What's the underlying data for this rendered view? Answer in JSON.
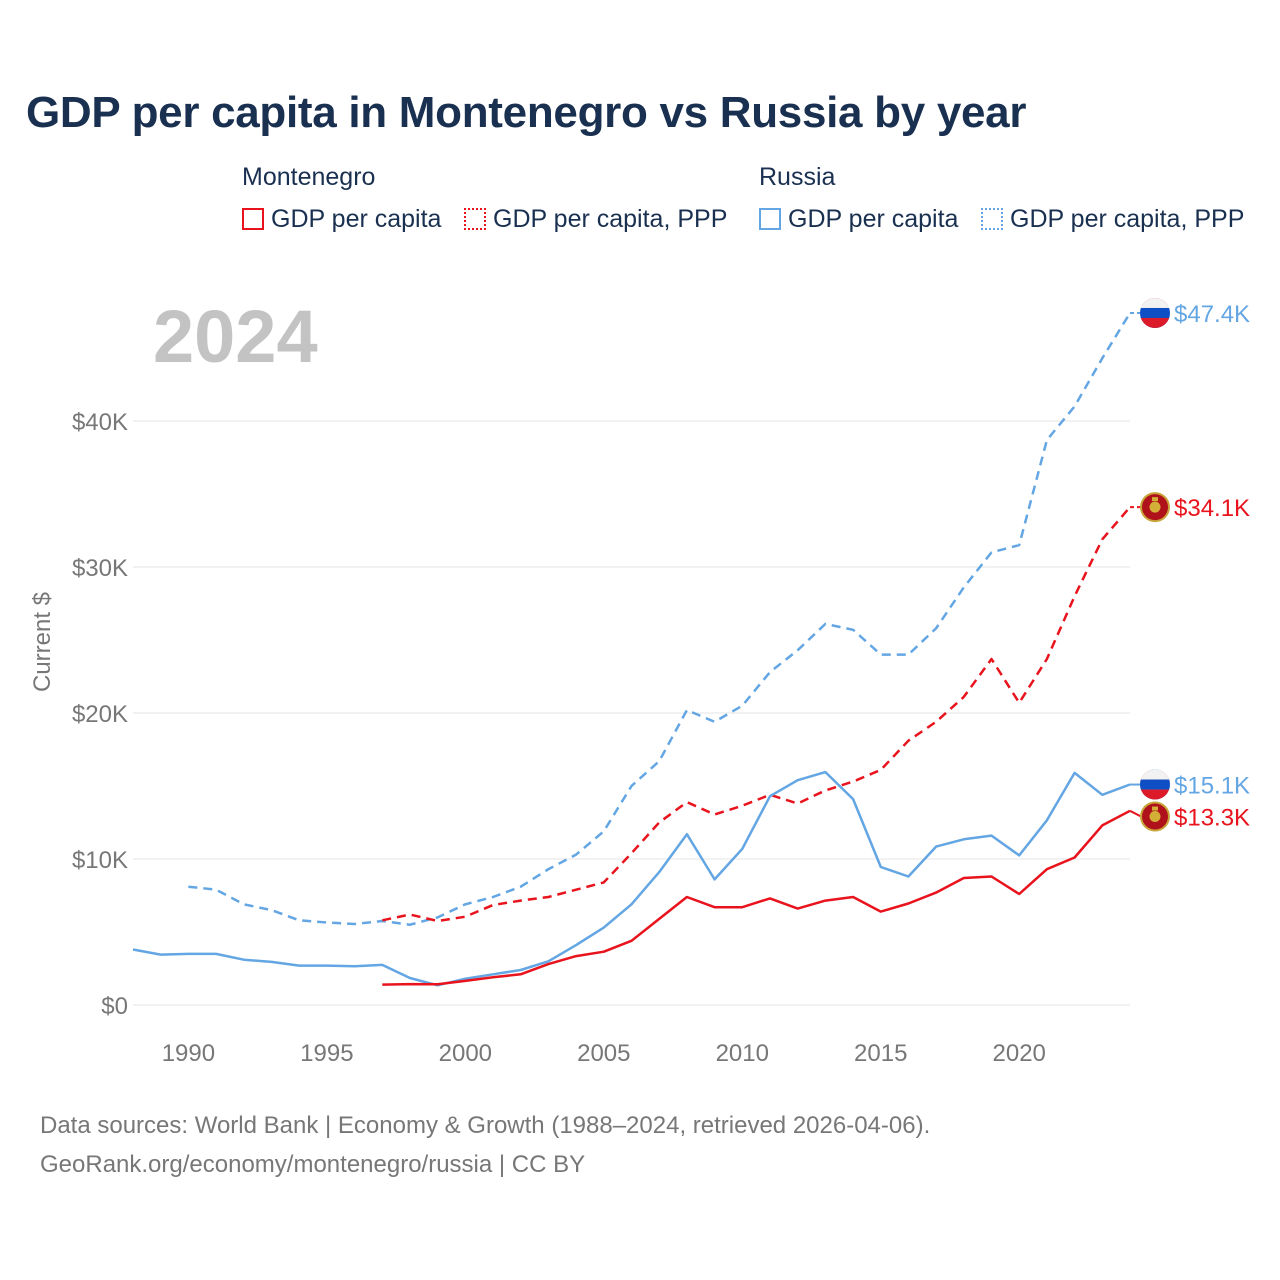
{
  "title": "GDP per capita in Montenegro vs Russia by year",
  "legend": {
    "groups": [
      {
        "country": "Montenegro",
        "color": "#e8131c",
        "items": [
          {
            "label": "GDP per capita",
            "style": "solid"
          },
          {
            "label": "GDP per capita, PPP",
            "style": "dotted"
          }
        ]
      },
      {
        "country": "Russia",
        "color": "#63a6e3",
        "items": [
          {
            "label": "GDP per capita",
            "style": "solid"
          },
          {
            "label": "GDP per capita, PPP",
            "style": "dotted"
          }
        ]
      }
    ]
  },
  "year_label": "2024",
  "chart_data": {
    "type": "line",
    "title": "GDP per capita in Montenegro vs Russia by year",
    "xlabel": "",
    "ylabel": "Current $",
    "xlim": [
      1988,
      2024
    ],
    "ylim": [
      0,
      50000
    ],
    "x_ticks": [
      1990,
      1995,
      2000,
      2005,
      2010,
      2015,
      2020
    ],
    "y_ticks": [
      0,
      10000,
      20000,
      30000,
      40000
    ],
    "y_tick_labels": [
      "$0",
      "$10K",
      "$20K",
      "$30K",
      "$40K"
    ],
    "series": [
      {
        "name": "Russia GDP per capita, PPP",
        "country": "Russia",
        "color": "#63a6e3",
        "dash": true,
        "end_label": "$47.4K",
        "x": [
          1990,
          1991,
          1992,
          1993,
          1994,
          1995,
          1996,
          1997,
          1998,
          1999,
          2000,
          2001,
          2002,
          2003,
          2004,
          2005,
          2006,
          2007,
          2008,
          2009,
          2010,
          2011,
          2012,
          2013,
          2014,
          2015,
          2016,
          2017,
          2018,
          2019,
          2020,
          2021,
          2022,
          2023,
          2024
        ],
        "values": [
          8100,
          7900,
          6900,
          6500,
          5800,
          5650,
          5550,
          5750,
          5500,
          6000,
          6900,
          7400,
          8100,
          9300,
          10300,
          11900,
          15000,
          16700,
          20200,
          19400,
          20500,
          22800,
          24300,
          26100,
          25700,
          24000,
          24000,
          25800,
          28600,
          31000,
          31500,
          38700,
          41000,
          44300,
          47400
        ]
      },
      {
        "name": "Montenegro GDP per capita, PPP",
        "country": "Montenegro",
        "color": "#e8131c",
        "dash": true,
        "end_label": "$34.1K",
        "x": [
          1997,
          1998,
          1999,
          2000,
          2001,
          2002,
          2003,
          2004,
          2005,
          2006,
          2007,
          2008,
          2009,
          2010,
          2011,
          2012,
          2013,
          2014,
          2015,
          2016,
          2017,
          2018,
          2019,
          2020,
          2021,
          2022,
          2023,
          2024
        ],
        "values": [
          5800,
          6200,
          5750,
          6050,
          6850,
          7150,
          7400,
          7900,
          8400,
          10400,
          12500,
          13900,
          13050,
          13650,
          14400,
          13800,
          14700,
          15300,
          16100,
          18100,
          19400,
          21100,
          23700,
          20700,
          23700,
          28000,
          31900,
          34100
        ]
      },
      {
        "name": "Russia GDP per capita",
        "country": "Russia",
        "color": "#63a6e3",
        "dash": false,
        "end_label": "$15.1K",
        "x": [
          1988,
          1989,
          1990,
          1991,
          1992,
          1993,
          1994,
          1995,
          1996,
          1997,
          1998,
          1999,
          2000,
          2001,
          2002,
          2003,
          2004,
          2005,
          2006,
          2007,
          2008,
          2009,
          2010,
          2011,
          2012,
          2013,
          2014,
          2015,
          2016,
          2017,
          2018,
          2019,
          2020,
          2021,
          2022,
          2023,
          2024
        ],
        "values": [
          3800,
          3450,
          3500,
          3500,
          3100,
          2950,
          2700,
          2700,
          2650,
          2750,
          1850,
          1350,
          1800,
          2100,
          2400,
          2990,
          4100,
          5300,
          6900,
          9100,
          11700,
          8600,
          10700,
          14300,
          15400,
          15950,
          14100,
          9450,
          8800,
          10850,
          11350,
          11600,
          10250,
          12650,
          15900,
          14400,
          15100
        ]
      },
      {
        "name": "Montenegro GDP per capita",
        "country": "Montenegro",
        "color": "#e8131c",
        "dash": false,
        "end_label": "$13.3K",
        "x": [
          1997,
          1998,
          1999,
          2000,
          2001,
          2002,
          2003,
          2004,
          2005,
          2006,
          2007,
          2008,
          2009,
          2010,
          2011,
          2012,
          2013,
          2014,
          2015,
          2016,
          2017,
          2018,
          2019,
          2020,
          2021,
          2022,
          2023,
          2024
        ],
        "values": [
          1400,
          1430,
          1420,
          1650,
          1900,
          2100,
          2800,
          3350,
          3650,
          4400,
          5900,
          7400,
          6700,
          6700,
          7300,
          6600,
          7150,
          7400,
          6400,
          6950,
          7700,
          8700,
          8800,
          7600,
          9300,
          10100,
          12300,
          13300
        ]
      }
    ]
  },
  "sources": {
    "line1": "Data sources: World Bank | Economy & Growth (1988–2024, retrieved 2026-04-06).",
    "line2": "GeoRank.org/economy/montenegro/russia | CC BY"
  }
}
